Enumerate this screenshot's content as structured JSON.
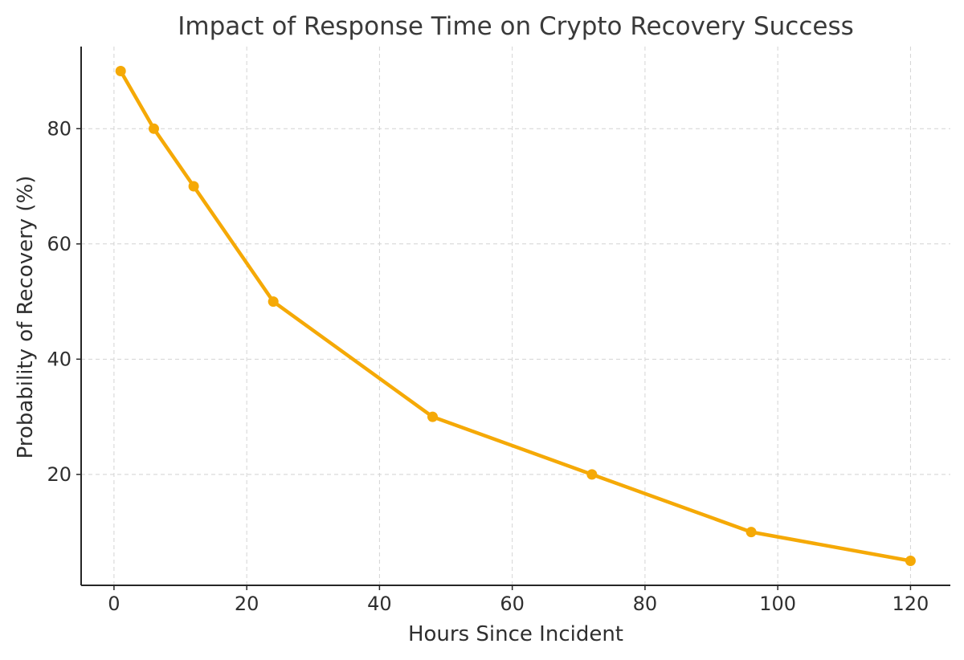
{
  "chart_data": {
    "type": "line",
    "title": "Impact of Response Time on Crypto Recovery Success",
    "xlabel": "Hours Since Incident",
    "ylabel": "Probability of Recovery (%)",
    "xlim": [
      -4.95,
      126
    ],
    "ylim": [
      0.75,
      94.25
    ],
    "x_ticks": [
      0,
      20,
      40,
      60,
      80,
      100,
      120
    ],
    "y_ticks": [
      20,
      40,
      60,
      80
    ],
    "grid": true,
    "series": [
      {
        "x": [
          1,
          6,
          12,
          24,
          48,
          72,
          96,
          120
        ],
        "values": [
          90,
          80,
          70,
          50,
          30,
          20,
          10,
          5
        ],
        "color": "#F5A906",
        "marker": "circle"
      }
    ]
  }
}
